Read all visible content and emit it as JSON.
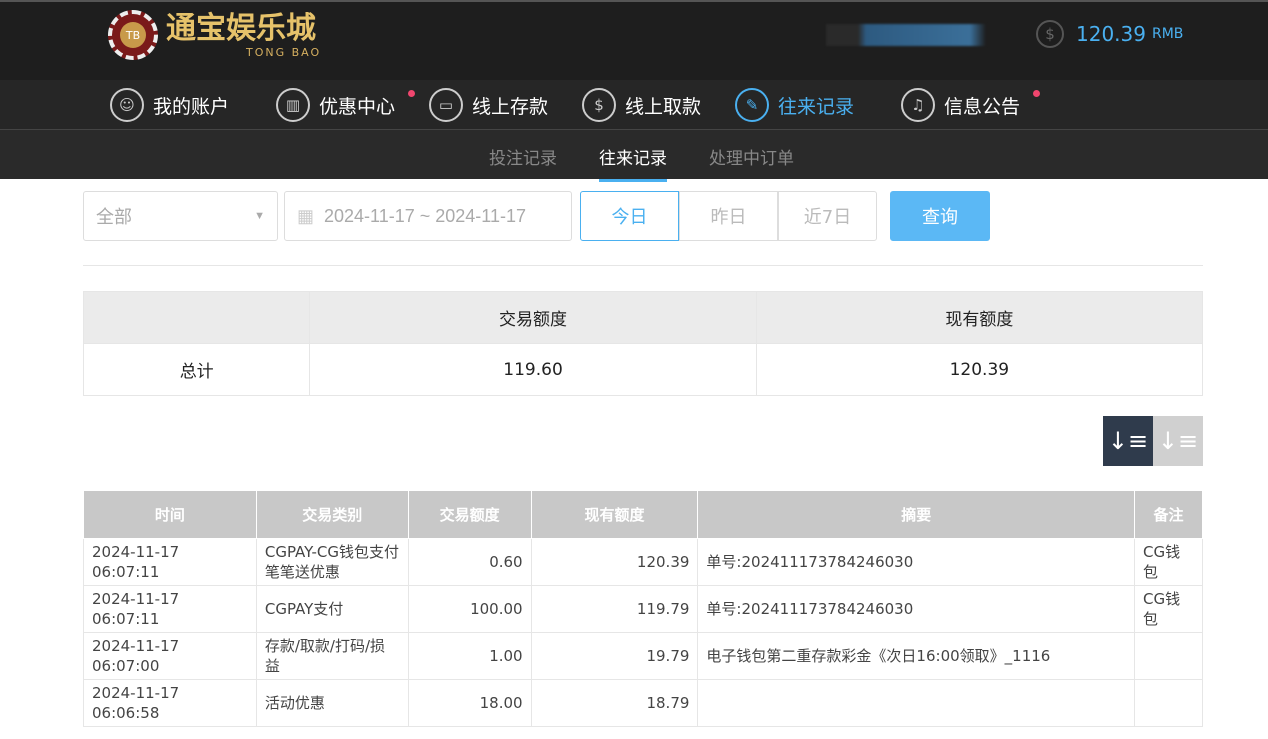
{
  "header": {
    "logo_text": "通宝娱乐城",
    "logo_sub": "TONG BAO",
    "logo_chip": "TB",
    "balance": "120.39",
    "currency": "RMB"
  },
  "nav": [
    {
      "label": "我的账户",
      "icon": "user-icon"
    },
    {
      "label": "优惠中心",
      "icon": "gift-icon",
      "dot": true
    },
    {
      "label": "线上存款",
      "icon": "deposit-icon"
    },
    {
      "label": "线上取款",
      "icon": "withdraw-icon"
    },
    {
      "label": "往来记录",
      "icon": "records-icon",
      "active": true
    },
    {
      "label": "信息公告",
      "icon": "bell-icon",
      "dot": true
    }
  ],
  "subnav": [
    "投注记录",
    "往来记录",
    "处理中订单"
  ],
  "filter": {
    "type": "全部",
    "date_range": "2024-11-17 ~ 2024-11-17",
    "quick": [
      "今日",
      "昨日",
      "近7日"
    ],
    "query": "查询"
  },
  "summary": {
    "headers": [
      "",
      "交易额度",
      "现有额度"
    ],
    "row": [
      "总计",
      "119.60",
      "120.39"
    ]
  },
  "records": {
    "headers": [
      "时间",
      "交易类别",
      "交易额度",
      "现有额度",
      "摘要",
      "备注"
    ],
    "rows": [
      [
        "2024-11-17 06:07:11",
        "CGPAY-CG钱包支付笔笔送优惠",
        "0.60",
        "120.39",
        "单号:202411173784246030",
        "CG钱包"
      ],
      [
        "2024-11-17 06:07:11",
        "CGPAY支付",
        "100.00",
        "119.79",
        "单号:202411173784246030",
        "CG钱包"
      ],
      [
        "2024-11-17 06:07:00",
        "存款/取款/打码/损益",
        "1.00",
        "19.79",
        "电子钱包第二重存款彩金《次日16:00领取》_1116",
        ""
      ],
      [
        "2024-11-17 06:06:58",
        "活动优惠",
        "18.00",
        "18.79",
        "",
        ""
      ]
    ]
  },
  "colors": {
    "accent": "#4ab0f0",
    "query_btn": "#5bb8f5",
    "sort_active": "#2f3b4c"
  }
}
